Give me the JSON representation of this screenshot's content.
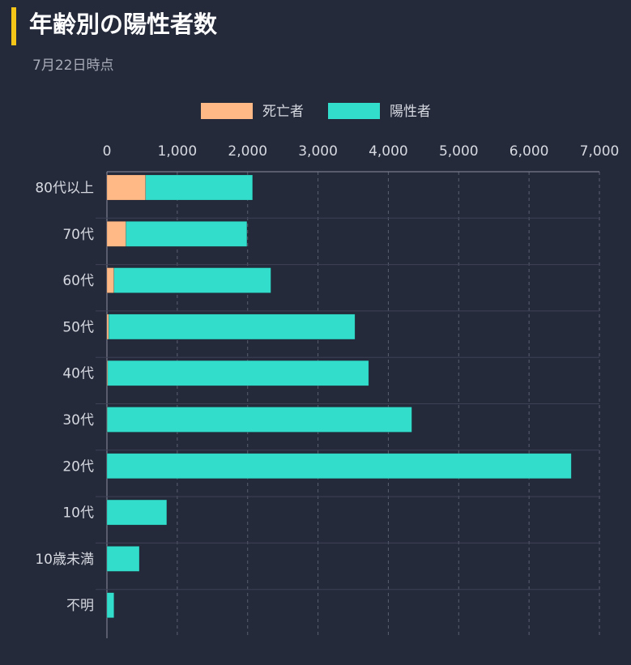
{
  "header": {
    "title": "年齢別の陽性者数",
    "subtitle": "7月22日時点"
  },
  "colors": {
    "background": "#252a3b",
    "accent": "#f5c518",
    "deaths": "#ffb987",
    "positives": "#33ddcc",
    "text": "#d6d9e0",
    "grid": "#5a5f70"
  },
  "chart_data": {
    "type": "bar",
    "orientation": "horizontal",
    "stacked": true,
    "categories": [
      "80代以上",
      "70代",
      "60代",
      "50代",
      "40代",
      "30代",
      "20代",
      "10代",
      "10歳未満",
      "不明"
    ],
    "series": [
      {
        "name": "死亡者",
        "color": "#ffb987",
        "values": [
          550,
          270,
          100,
          25,
          10,
          3,
          0,
          0,
          0,
          0
        ]
      },
      {
        "name": "陽性者",
        "color": "#33ddcc",
        "values": [
          1520,
          1720,
          2230,
          3500,
          3710,
          4330,
          6600,
          850,
          460,
          100
        ]
      }
    ],
    "xlim": [
      0,
      7000
    ],
    "xticks": [
      0,
      1000,
      2000,
      3000,
      4000,
      5000,
      6000,
      7000
    ],
    "xtick_labels": [
      "0",
      "1,000",
      "2,000",
      "3,000",
      "4,000",
      "5,000",
      "6,000",
      "7,000"
    ],
    "xaxis_position": "top",
    "legend_position": "top-center",
    "grid": "vertical-dashed"
  }
}
